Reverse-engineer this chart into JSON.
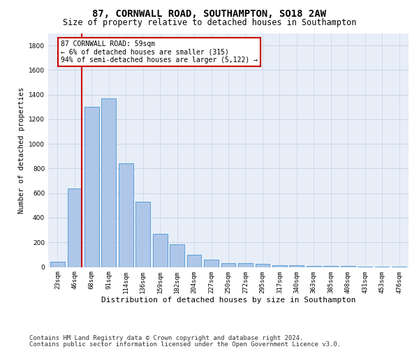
{
  "title1": "87, CORNWALL ROAD, SOUTHAMPTON, SO18 2AW",
  "title2": "Size of property relative to detached houses in Southampton",
  "xlabel": "Distribution of detached houses by size in Southampton",
  "ylabel": "Number of detached properties",
  "categories": [
    "23sqm",
    "46sqm",
    "68sqm",
    "91sqm",
    "114sqm",
    "136sqm",
    "159sqm",
    "182sqm",
    "204sqm",
    "227sqm",
    "250sqm",
    "272sqm",
    "295sqm",
    "317sqm",
    "340sqm",
    "363sqm",
    "385sqm",
    "408sqm",
    "431sqm",
    "453sqm",
    "476sqm"
  ],
  "values": [
    40,
    640,
    1300,
    1370,
    840,
    530,
    270,
    185,
    100,
    60,
    30,
    30,
    25,
    15,
    12,
    10,
    8,
    6,
    5,
    4,
    3
  ],
  "bar_color": "#aec6e8",
  "bar_edge_color": "#5a9fd4",
  "annotation_line1": "87 CORNWALL ROAD: 59sqm",
  "annotation_line2": "← 6% of detached houses are smaller (315)",
  "annotation_line3": "94% of semi-detached houses are larger (5,122) →",
  "annotation_box_color": "#ffffff",
  "annotation_border_color": "#cc0000",
  "red_line_color": "#cc0000",
  "ylim": [
    0,
    1900
  ],
  "yticks": [
    0,
    200,
    400,
    600,
    800,
    1000,
    1200,
    1400,
    1600,
    1800
  ],
  "grid_color": "#c8d4e8",
  "background_color": "#e8eef8",
  "footer1": "Contains HM Land Registry data © Crown copyright and database right 2024.",
  "footer2": "Contains public sector information licensed under the Open Government Licence v3.0.",
  "title1_fontsize": 10,
  "title2_fontsize": 8.5,
  "xlabel_fontsize": 8,
  "ylabel_fontsize": 7.5,
  "tick_fontsize": 6.5,
  "annotation_fontsize": 7,
  "footer_fontsize": 6.5
}
